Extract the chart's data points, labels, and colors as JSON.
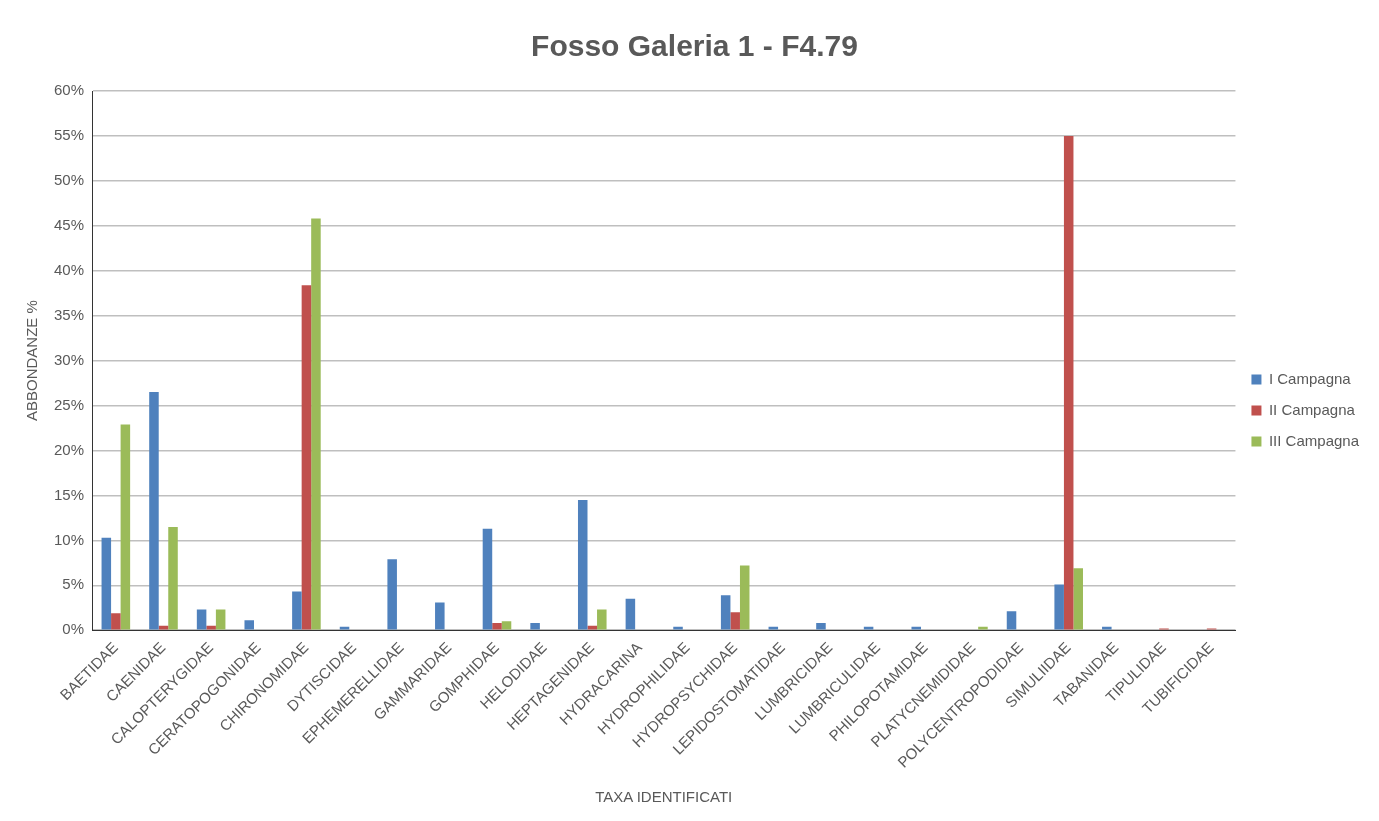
{
  "chart_data": {
    "type": "bar",
    "title": "Fosso Galeria 1 - F4.79",
    "xlabel": "TAXA IDENTIFICATI",
    "ylabel": "ABBONDANZE %",
    "categories": [
      "BAETIDAE",
      "CAENIDAE",
      "CALOPTERYGIDAE",
      "CERATOPOGONIDAE",
      "CHIRONOMIDAE",
      "DYTISCIDAE",
      "EPHEMERELLIDAE",
      "GAMMARIDAE",
      "GOMPHIDAE",
      "HELODIDAE",
      "HEPTAGENIDAE",
      "HYDRACARINA",
      "HYDROPHILIDAE",
      "HYDROPSYCHIDAE",
      "LEPIDOSTOMATIDAE",
      "LUMBRICIDAE",
      "LUMBRICULIDAE",
      "PHILOPOTAMIDAE",
      "PLATYCNEMIDIDAE",
      "POLYCENTROPODIDAE",
      "SIMULIIDAE",
      "TABANIDAE",
      "TIPULIDAE",
      "TUBIFICIDAE"
    ],
    "series": [
      {
        "name": "I Campagna",
        "color": "#4f81bd",
        "values": [
          10.3,
          26.5,
          2.3,
          1.1,
          4.3,
          0.4,
          7.9,
          3.1,
          11.3,
          0.8,
          14.5,
          3.5,
          0.4,
          3.9,
          0.4,
          0.8,
          0.4,
          0.4,
          null,
          2.1,
          5.1,
          0.4,
          null,
          null
        ]
      },
      {
        "name": "II Campagna",
        "color": "#c0504d",
        "values": [
          1.9,
          0.5,
          0.5,
          null,
          38.4,
          null,
          null,
          null,
          0.8,
          null,
          0.5,
          null,
          null,
          2.0,
          null,
          null,
          null,
          null,
          null,
          null,
          55.0,
          null,
          0.2,
          0.2
        ]
      },
      {
        "name": "III Campagna",
        "color": "#9bbb59",
        "values": [
          22.9,
          11.5,
          2.3,
          null,
          45.8,
          null,
          null,
          null,
          1.0,
          null,
          2.3,
          null,
          null,
          7.2,
          null,
          null,
          null,
          null,
          0.4,
          null,
          6.9,
          null,
          null,
          null
        ]
      }
    ],
    "ylim": [
      0,
      60
    ],
    "yticks": [
      {
        "value": 0,
        "label": "0%"
      },
      {
        "value": 5,
        "label": "5%"
      },
      {
        "value": 10,
        "label": "10%"
      },
      {
        "value": 15,
        "label": "15%"
      },
      {
        "value": 20,
        "label": "20%"
      },
      {
        "value": 25,
        "label": "25%"
      },
      {
        "value": 30,
        "label": "30%"
      },
      {
        "value": 35,
        "label": "35%"
      },
      {
        "value": 40,
        "label": "40%"
      },
      {
        "value": 45,
        "label": "45%"
      },
      {
        "value": 50,
        "label": "50%"
      },
      {
        "value": 55,
        "label": "55%"
      },
      {
        "value": 60,
        "label": "60%"
      }
    ],
    "grid": "y",
    "legend": "right"
  }
}
